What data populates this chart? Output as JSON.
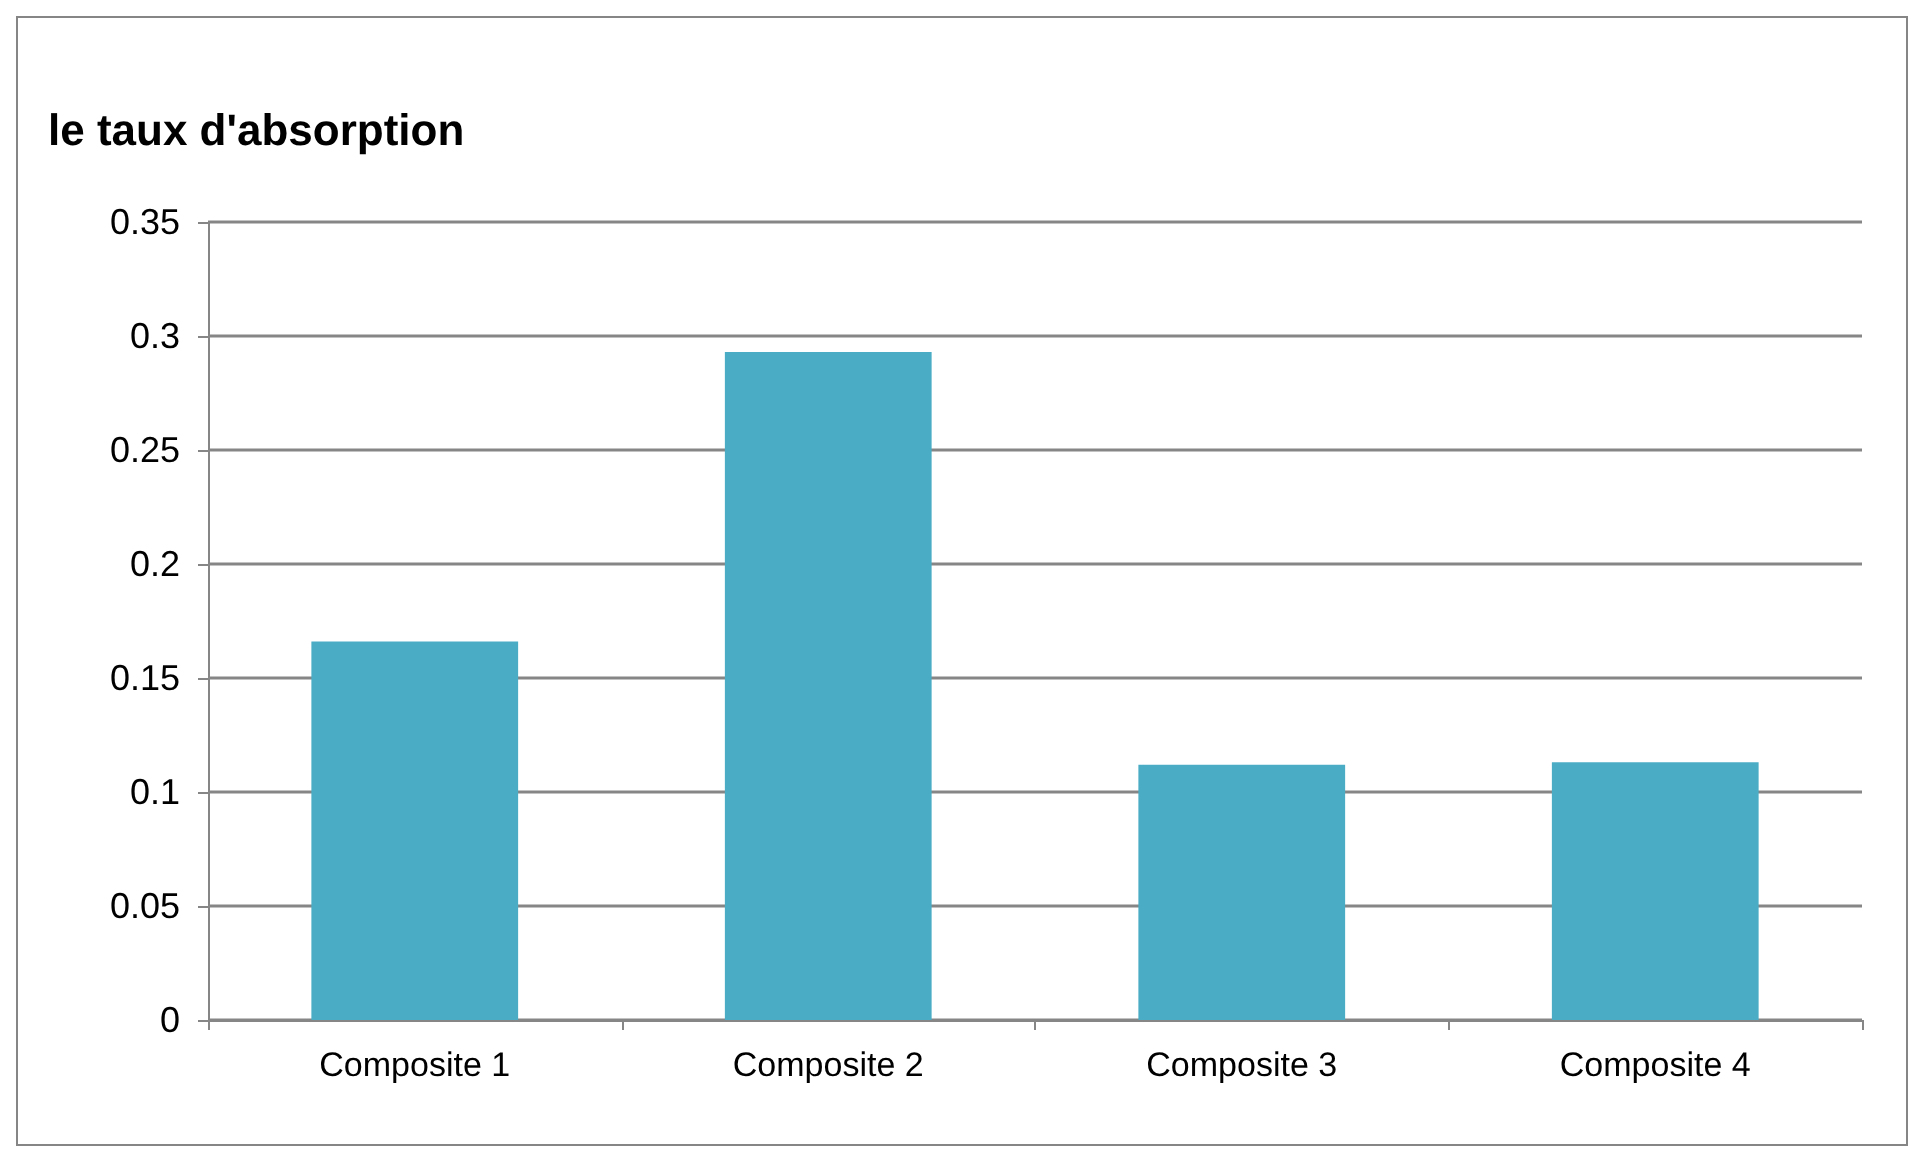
{
  "chart_data": {
    "type": "bar",
    "title": "le taux d'absorption",
    "categories": [
      "Composite 1",
      "Composite 2",
      "Composite 3",
      "Composite 4"
    ],
    "values": [
      0.166,
      0.293,
      0.112,
      0.113
    ],
    "color": "#4bacc6",
    "ylim": [
      0,
      0.35
    ],
    "yticks": [
      0,
      0.05,
      0.1,
      0.15,
      0.2,
      0.25,
      0.3,
      0.35
    ],
    "grid": "y"
  }
}
